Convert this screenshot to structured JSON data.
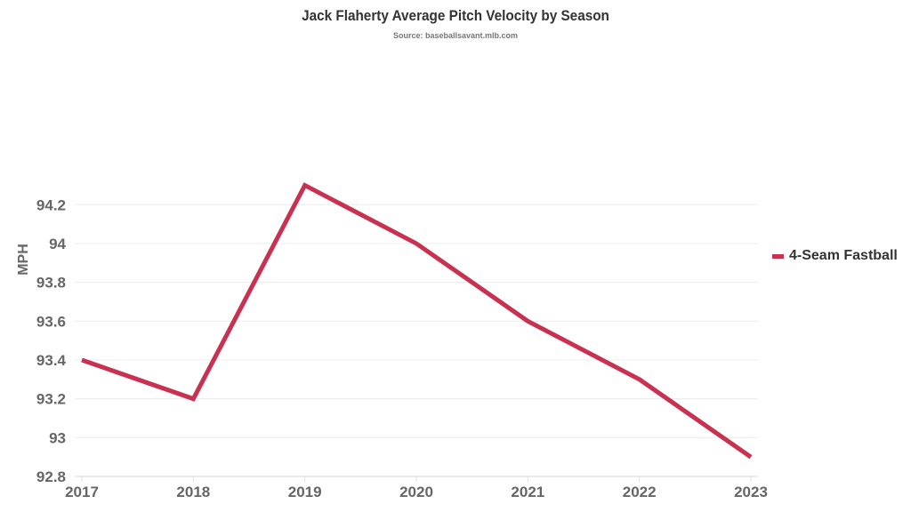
{
  "chart_data": {
    "type": "line",
    "title": "Jack Flaherty Average Pitch Velocity by Season",
    "subtitle": "Source: baseballsavant.mlb.com",
    "xlabel": "",
    "ylabel": "MPH",
    "x": [
      "2017",
      "2018",
      "2019",
      "2020",
      "2021",
      "2022",
      "2023"
    ],
    "series": [
      {
        "name": "4-Seam Fastball",
        "color": "#c8314f",
        "values": [
          93.4,
          93.2,
          94.3,
          94.0,
          93.6,
          93.3,
          92.9
        ]
      }
    ],
    "yticks": [
      92.8,
      93,
      93.2,
      93.4,
      93.6,
      93.8,
      94,
      94.2
    ],
    "ytick_labels": [
      "92.8",
      "93",
      "93.2",
      "93.4",
      "93.6",
      "93.8",
      "94",
      "94.2"
    ],
    "ylim": [
      92.8,
      94.4
    ],
    "grid": true,
    "legend": "right"
  }
}
